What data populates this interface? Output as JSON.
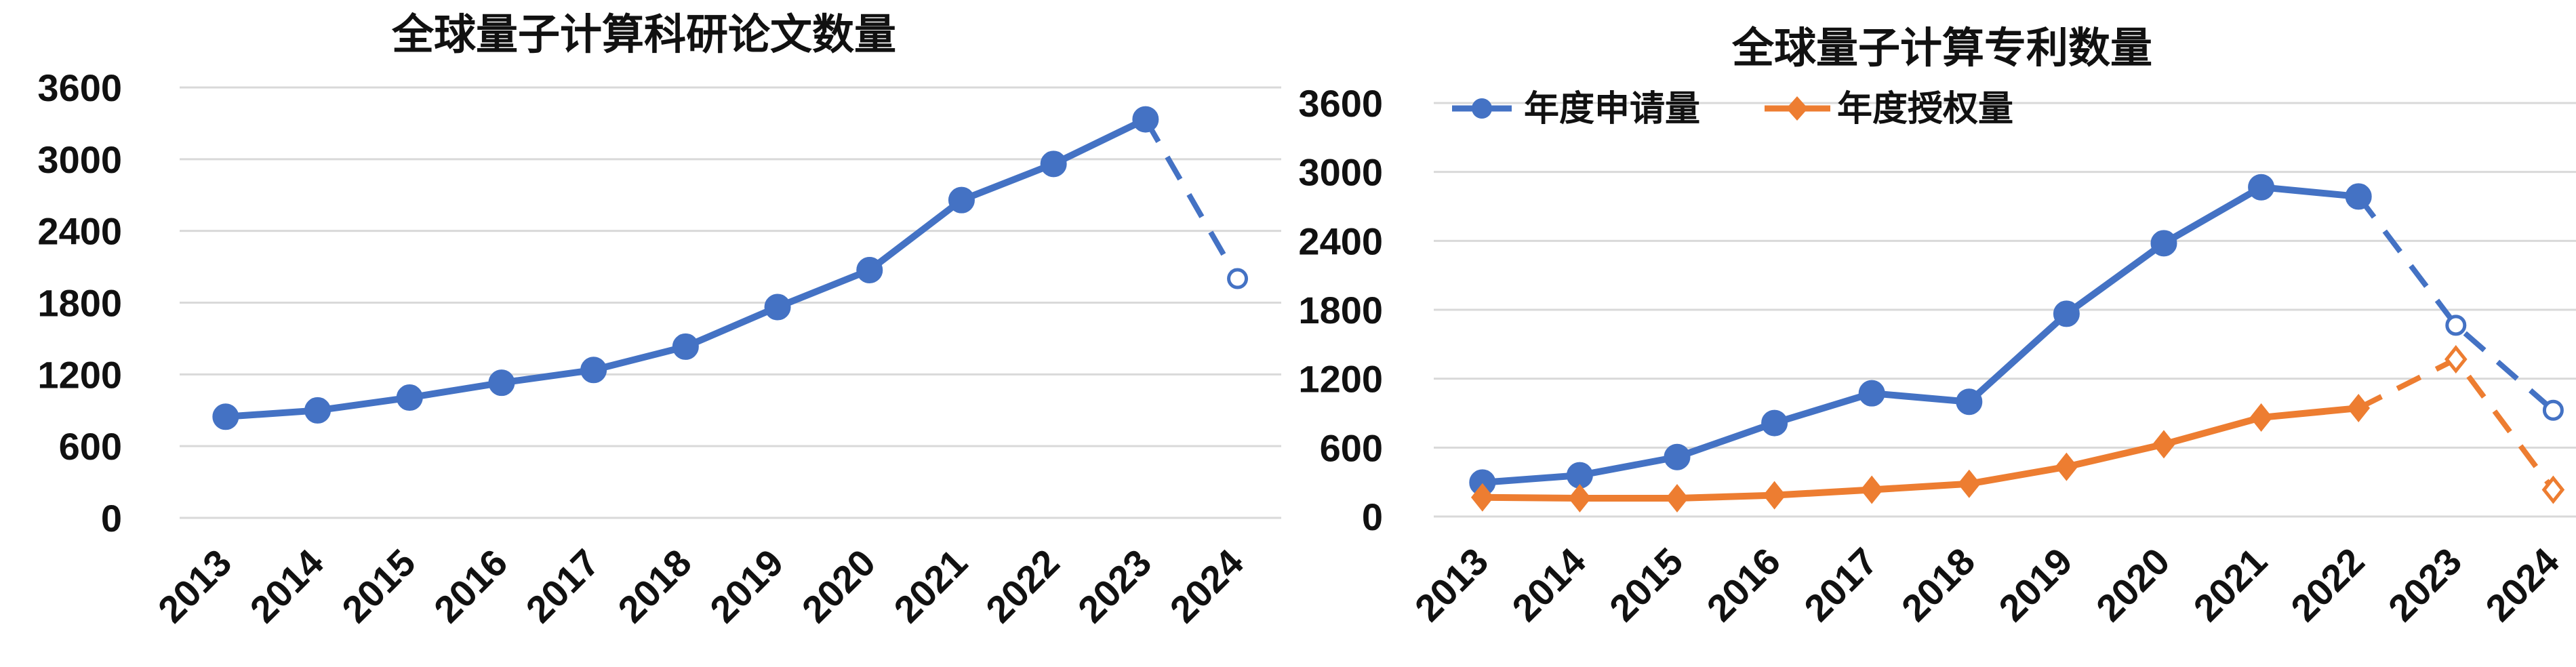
{
  "chart_data": [
    {
      "type": "line",
      "title": "全球量子计算科研论文数量",
      "categories": [
        "2013",
        "2014",
        "2015",
        "2016",
        "2017",
        "2018",
        "2019",
        "2020",
        "2021",
        "2022",
        "2023",
        "2024"
      ],
      "yticks": [
        "0",
        "600",
        "1200",
        "1800",
        "2400",
        "3000",
        "3600"
      ],
      "ylim": [
        0,
        3600
      ],
      "grid": true,
      "legend": "none",
      "series": [
        {
          "values": [
            846,
            899,
            1006,
            1130,
            1237,
            1432,
            1763,
            2072,
            2658,
            2960,
            3333,
            2001
          ],
          "color": "#4472C4",
          "marker": "circle",
          "projected_from_index": 10
        }
      ]
    },
    {
      "type": "line",
      "title": "全球量子计算专利数量",
      "categories": [
        "2013",
        "2014",
        "2015",
        "2016",
        "2017",
        "2018",
        "2019",
        "2020",
        "2021",
        "2022",
        "2023",
        "2024"
      ],
      "yticks": [
        "0",
        "600",
        "1200",
        "1800",
        "2400",
        "3000",
        "3600"
      ],
      "ylim": [
        0,
        3600
      ],
      "grid": true,
      "legend": "top-left",
      "series": [
        {
          "name": "年度申请量",
          "values": [
            296,
            359,
            518,
            814,
            1073,
            999,
            1765,
            2379,
            2867,
            2786,
            1665,
            925
          ],
          "color": "#4472C4",
          "marker": "circle",
          "projected_from_index": 9
        },
        {
          "name": "年度授权量",
          "values": [
            167,
            159,
            159,
            185,
            233,
            285,
            433,
            629,
            862,
            944,
            1369,
            233
          ],
          "color": "#ED7D31",
          "marker": "diamond",
          "projected_from_index": 9
        }
      ]
    }
  ]
}
